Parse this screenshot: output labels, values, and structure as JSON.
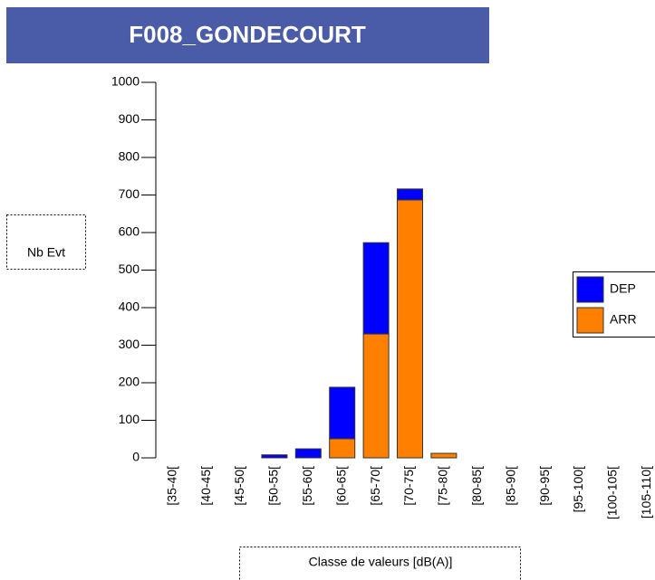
{
  "chart_data": {
    "type": "stacked_bar",
    "title": "F008_GONDECOURT",
    "ylabel": "Nb Evt",
    "xlabel": "Classe de valeurs [dB(A)]",
    "categories": [
      "[35-40[",
      "[40-45[",
      "[45-50[",
      "[50-55[",
      "[55-60[",
      "[60-65[",
      "[65-70[",
      "[70-75[",
      "[75-80[",
      "[80-85[",
      "[85-90[",
      "[90-95[",
      "[95-100[",
      "[100-105[",
      "[105-110["
    ],
    "series": [
      {
        "name": "ARR",
        "color": "#ff8000",
        "values": [
          0,
          0,
          0,
          0,
          0,
          51,
          330,
          687,
          12,
          0,
          0,
          0,
          0,
          0,
          0
        ]
      },
      {
        "name": "DEP",
        "color": "#0000ff",
        "values": [
          0,
          0,
          0,
          8,
          24,
          137,
          243,
          29,
          0,
          0,
          0,
          0,
          0,
          0,
          0
        ]
      }
    ],
    "legend_order": [
      "DEP",
      "ARR"
    ],
    "ylim": [
      0,
      1000
    ],
    "yticks": [
      0,
      100,
      200,
      300,
      400,
      500,
      600,
      700,
      800,
      900,
      1000
    ]
  }
}
